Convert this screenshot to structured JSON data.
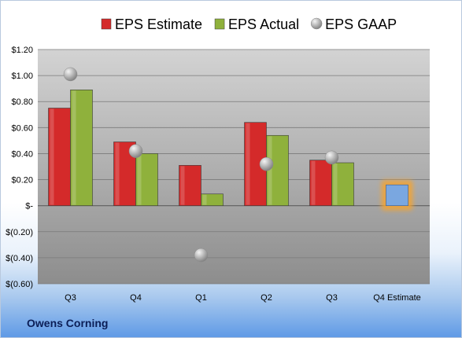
{
  "company": "Owens Corning",
  "chart_data": {
    "type": "bar",
    "categories": [
      "Q3",
      "Q4",
      "Q1",
      "Q2",
      "Q3",
      "Q4 Estimate"
    ],
    "series": [
      {
        "name": "EPS Estimate",
        "type": "bar",
        "values": [
          0.75,
          0.49,
          0.31,
          0.64,
          0.35,
          null
        ],
        "color": "#d42a2a"
      },
      {
        "name": "EPS Actual",
        "type": "bar",
        "values": [
          0.89,
          0.4,
          0.09,
          0.54,
          0.33,
          null
        ],
        "color": "#8fb13c"
      },
      {
        "name": "EPS GAAP",
        "type": "scatter",
        "values": [
          1.01,
          0.42,
          -0.38,
          0.32,
          0.37,
          null
        ],
        "color": "#b5b5b5"
      }
    ],
    "next_estimate": {
      "category": "Q4 Estimate",
      "value": 0.16,
      "color": "#7aa7e0",
      "glow": "#f4a433"
    },
    "ylim": [
      -0.6,
      1.2
    ],
    "y_ticks": [
      1.2,
      1.0,
      0.8,
      0.6,
      0.4,
      0.2,
      0,
      -0.2,
      -0.4,
      -0.6
    ],
    "y_tick_labels": [
      "$1.20",
      "$1.00",
      "$0.80",
      "$0.60",
      "$0.40",
      "$0.20",
      "$-",
      "$(0.20)",
      "$(0.40)",
      "$(0.60)"
    ],
    "grid": true,
    "legend_position": "top",
    "xlabel": "",
    "ylabel": "",
    "title": ""
  }
}
